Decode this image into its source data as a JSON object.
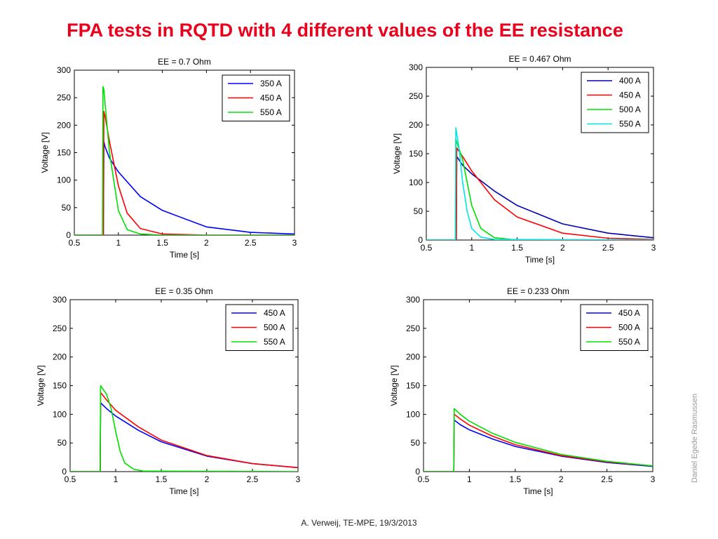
{
  "slide": {
    "title": "FPA tests in RQTD with 4 different values of the EE resistance",
    "footer": "A. Verweij, TE-MPE, 19/3/2013",
    "side_credit": "Daniel Egede Rasmussen"
  },
  "chart_data": [
    {
      "type": "line",
      "title": "EE = 0.7 Ohm",
      "xlabel": "Time [s]",
      "ylabel": "Voltage [V]",
      "xlim": [
        0.5,
        3
      ],
      "ylim": [
        0,
        300
      ],
      "xticks": [
        "0.5",
        "1",
        "1.5",
        "2",
        "2.5",
        "3"
      ],
      "yticks": [
        "0",
        "50",
        "100",
        "150",
        "200",
        "250",
        "300"
      ],
      "legend_position": "top-right",
      "grid": false,
      "series": [
        {
          "name": "350 A",
          "color": "#0000ff",
          "x": [
            0.5,
            0.83,
            0.835,
            0.85,
            0.9,
            1.0,
            1.25,
            1.5,
            2.0,
            2.5,
            3.0
          ],
          "y": [
            0,
            0,
            170,
            160,
            140,
            115,
            70,
            45,
            15,
            5,
            2
          ]
        },
        {
          "name": "450 A",
          "color": "#ff0000",
          "x": [
            0.5,
            0.83,
            0.835,
            0.85,
            0.9,
            1.0,
            1.1,
            1.25,
            1.5,
            2.0,
            3.0
          ],
          "y": [
            0,
            0,
            225,
            215,
            170,
            90,
            40,
            12,
            2,
            0,
            0
          ]
        },
        {
          "name": "550 A",
          "color": "#00e000",
          "x": [
            0.5,
            0.82,
            0.825,
            0.835,
            0.86,
            0.9,
            1.0,
            1.1,
            1.25,
            1.5,
            3.0
          ],
          "y": [
            0,
            0,
            270,
            265,
            220,
            150,
            45,
            10,
            2,
            0,
            0
          ]
        }
      ]
    },
    {
      "type": "line",
      "title": "EE = 0.467 Ohm",
      "xlabel": "Time [s]",
      "ylabel": "Voltage [V]",
      "xlim": [
        0.5,
        3
      ],
      "ylim": [
        0,
        300
      ],
      "xticks": [
        "0.5",
        "1",
        "1.5",
        "2",
        "2.5",
        "3"
      ],
      "yticks": [
        "0",
        "50",
        "100",
        "150",
        "200",
        "250",
        "300"
      ],
      "legend_position": "top-right",
      "grid": false,
      "series": [
        {
          "name": "400 A",
          "color": "#0000b0",
          "x": [
            0.5,
            0.83,
            0.835,
            0.9,
            1.0,
            1.25,
            1.5,
            2.0,
            2.5,
            3.0
          ],
          "y": [
            0,
            0,
            145,
            130,
            115,
            85,
            60,
            28,
            12,
            4
          ]
        },
        {
          "name": "450 A",
          "color": "#ff0000",
          "x": [
            0.5,
            0.83,
            0.835,
            0.9,
            1.0,
            1.25,
            1.5,
            2.0,
            2.5,
            3.0
          ],
          "y": [
            0,
            0,
            160,
            145,
            120,
            70,
            40,
            12,
            3,
            1
          ]
        },
        {
          "name": "500 A",
          "color": "#00e000",
          "x": [
            0.5,
            0.82,
            0.825,
            0.9,
            0.95,
            1.0,
            1.1,
            1.25,
            1.5,
            3.0
          ],
          "y": [
            0,
            0,
            175,
            140,
            100,
            60,
            20,
            4,
            0,
            0
          ]
        },
        {
          "name": "550 A",
          "color": "#00e6e6",
          "x": [
            0.5,
            0.82,
            0.825,
            0.86,
            0.9,
            0.95,
            1.0,
            1.1,
            1.25,
            3.0
          ],
          "y": [
            0,
            0,
            195,
            160,
            100,
            50,
            20,
            5,
            1,
            0
          ]
        }
      ]
    },
    {
      "type": "line",
      "title": "EE = 0.35 Ohm",
      "xlabel": "Time [s]",
      "ylabel": "Voltage [V]",
      "xlim": [
        0.5,
        3
      ],
      "ylim": [
        0,
        300
      ],
      "xticks": [
        "0.5",
        "1",
        "1.5",
        "2",
        "2.5",
        "3"
      ],
      "yticks": [
        "0",
        "50",
        "100",
        "150",
        "200",
        "250",
        "300"
      ],
      "legend_position": "top-right",
      "grid": false,
      "series": [
        {
          "name": "450 A",
          "color": "#0000ff",
          "x": [
            0.5,
            0.83,
            0.835,
            0.9,
            1.0,
            1.25,
            1.5,
            2.0,
            2.5,
            3.0
          ],
          "y": [
            0,
            0,
            120,
            110,
            97,
            72,
            52,
            27,
            14,
            7
          ]
        },
        {
          "name": "500 A",
          "color": "#ff0000",
          "x": [
            0.5,
            0.83,
            0.835,
            0.9,
            1.0,
            1.25,
            1.5,
            2.0,
            2.5,
            3.0
          ],
          "y": [
            0,
            0,
            138,
            125,
            107,
            78,
            55,
            28,
            14,
            7
          ]
        },
        {
          "name": "550 A",
          "color": "#00e000",
          "x": [
            0.5,
            0.83,
            0.835,
            0.9,
            0.95,
            1.0,
            1.05,
            1.1,
            1.2,
            1.3,
            3.0
          ],
          "y": [
            0,
            0,
            150,
            135,
            110,
            70,
            35,
            15,
            4,
            1,
            0
          ]
        }
      ]
    },
    {
      "type": "line",
      "title": "EE = 0.233 Ohm",
      "xlabel": "Time [s]",
      "ylabel": "Voltage [V]",
      "xlim": [
        0.5,
        3
      ],
      "ylim": [
        0,
        300
      ],
      "xticks": [
        "0.5",
        "1",
        "1.5",
        "2",
        "2.5",
        "3"
      ],
      "yticks": [
        "0",
        "50",
        "100",
        "150",
        "200",
        "250",
        "300"
      ],
      "legend_position": "top-right",
      "grid": false,
      "series": [
        {
          "name": "450 A",
          "color": "#0000ff",
          "x": [
            0.5,
            0.83,
            0.835,
            0.9,
            1.0,
            1.25,
            1.5,
            2.0,
            2.5,
            3.0
          ],
          "y": [
            0,
            0,
            90,
            82,
            73,
            57,
            44,
            27,
            16,
            9
          ]
        },
        {
          "name": "500 A",
          "color": "#ff0000",
          "x": [
            0.5,
            0.83,
            0.835,
            0.9,
            1.0,
            1.25,
            1.5,
            2.0,
            2.5,
            3.0
          ],
          "y": [
            0,
            0,
            100,
            92,
            81,
            62,
            47,
            28,
            17,
            10
          ]
        },
        {
          "name": "550 A",
          "color": "#00e000",
          "x": [
            0.5,
            0.83,
            0.835,
            0.9,
            1.0,
            1.25,
            1.5,
            2.0,
            2.5,
            3.0
          ],
          "y": [
            0,
            0,
            110,
            100,
            88,
            67,
            51,
            30,
            18,
            10
          ]
        }
      ]
    }
  ]
}
